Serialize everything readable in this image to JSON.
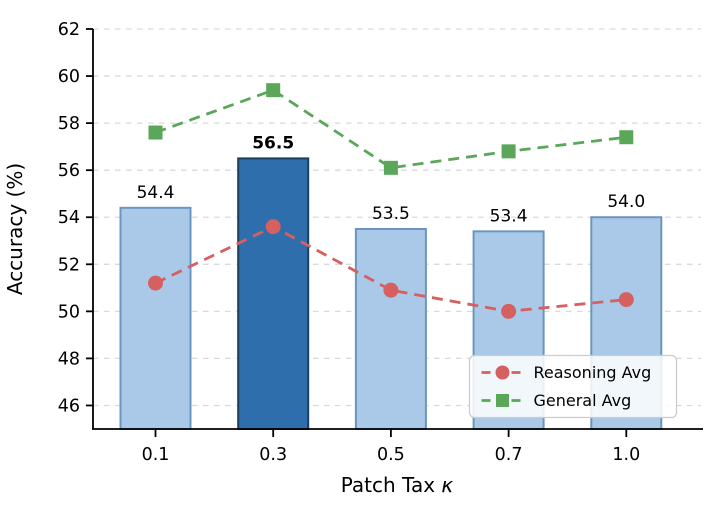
{
  "figure": {
    "background": "#ffffff"
  },
  "chart_data": {
    "type": "bar",
    "title": "",
    "xlabel": "Patch Tax κ",
    "ylabel": "Accuracy (%)",
    "categories": [
      "0.1",
      "0.3",
      "0.5",
      "0.7",
      "1.0"
    ],
    "bars": {
      "values": [
        54.4,
        56.5,
        53.5,
        53.4,
        54.0
      ],
      "labels": [
        "54.4",
        "56.5",
        "53.5",
        "53.4",
        "54.0"
      ],
      "highlight_index": 1,
      "fill": "#aac9e8",
      "edge": "#6a96be",
      "highlight_fill": "#2e6ead",
      "highlight_edge": "#1c3e5e"
    },
    "series": [
      {
        "name": "Reasoning Avg",
        "marker": "circle",
        "color": "#d65f5f",
        "values": [
          51.2,
          53.6,
          50.9,
          50.0,
          50.5
        ]
      },
      {
        "name": "General Avg",
        "marker": "square",
        "color": "#5aa75a",
        "values": [
          57.6,
          59.4,
          56.1,
          56.8,
          57.4
        ]
      }
    ],
    "ylim": [
      45,
      62
    ],
    "yticks": [
      46,
      48,
      50,
      52,
      54,
      56,
      58,
      60,
      62
    ],
    "grid": true,
    "grid_color": "#d9d9d9",
    "legend": {
      "position": "lower right",
      "entries": [
        "Reasoning Avg",
        "General Avg"
      ]
    }
  }
}
